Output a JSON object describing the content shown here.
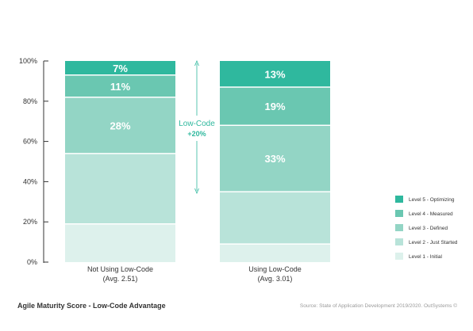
{
  "chart_data": {
    "type": "bar",
    "stacked": true,
    "categories": [
      "Not Using Low-Code\n(Avg. 2.51)",
      "Using Low-Code\n(Avg. 3.01)"
    ],
    "series": [
      {
        "name": "Level 1 - Initial",
        "color": "#ddf1ec",
        "values": [
          19,
          9
        ]
      },
      {
        "name": "Level 2 - Just Started",
        "color": "#b8e3d9",
        "values": [
          35,
          26
        ]
      },
      {
        "name": "Level 3 - Defined",
        "color": "#93d5c5",
        "values": [
          28,
          33
        ]
      },
      {
        "name": "Level 4 - Measured",
        "color": "#6ac7b1",
        "values": [
          11,
          19
        ]
      },
      {
        "name": "Level 5 - Optimizing",
        "color": "#2fb89e",
        "values": [
          7,
          13
        ]
      }
    ],
    "data_labels": [
      {
        "category": 0,
        "series": 4,
        "text": "7%"
      },
      {
        "category": 0,
        "series": 3,
        "text": "11%"
      },
      {
        "category": 0,
        "series": 2,
        "text": "28%"
      },
      {
        "category": 1,
        "series": 4,
        "text": "13%"
      },
      {
        "category": 1,
        "series": 3,
        "text": "19%"
      },
      {
        "category": 1,
        "series": 2,
        "text": "33%"
      }
    ],
    "y_ticks": [
      "0%",
      "20%",
      "40%",
      "60%",
      "80%",
      "100%"
    ],
    "ylim": [
      0,
      100
    ],
    "grid": false,
    "legend_position": "right",
    "annotation": {
      "line1": "Low-Code",
      "line2": "+20%",
      "color": "#2fb89e"
    }
  },
  "footer": {
    "title": "Agile Maturity Score - Low-Code Advantage",
    "source": "Source: State of Application Development 2019/2020. OutSystems ©"
  }
}
